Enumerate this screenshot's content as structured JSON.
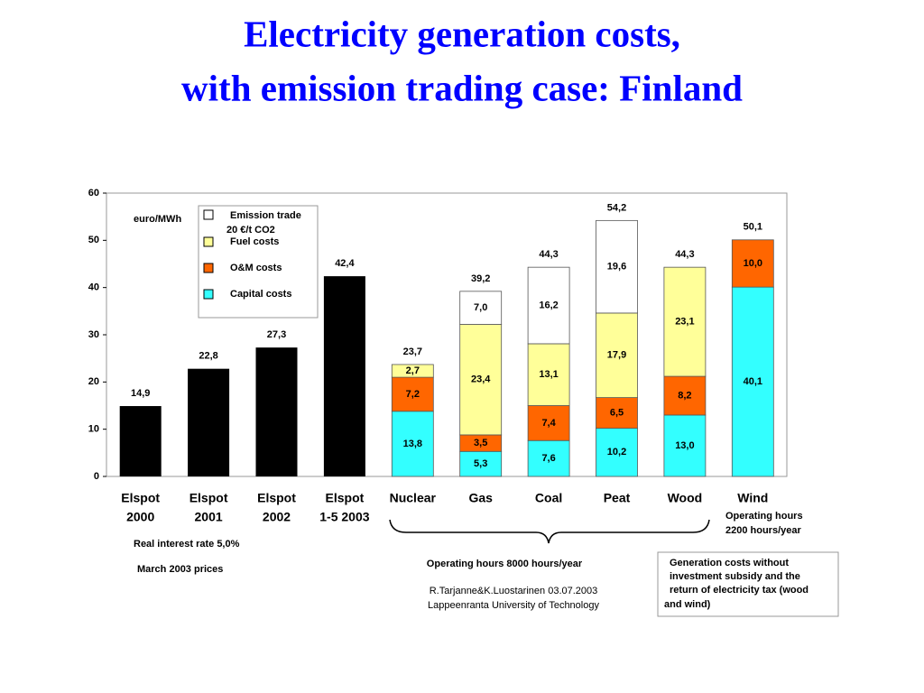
{
  "chart_data": {
    "type": "stacked_bar",
    "title": [
      "Electricity generation costs,",
      "with emission trading case: Finland"
    ],
    "y_label": "euro/MWh",
    "categories": [
      [
        "Elspot",
        "2000"
      ],
      [
        "Elspot",
        "2001"
      ],
      [
        "Elspot",
        "2002"
      ],
      [
        "Elspot",
        "1-5 2003"
      ],
      [
        "Nuclear"
      ],
      [
        "Gas"
      ],
      [
        "Coal"
      ],
      [
        "Peat"
      ],
      [
        "Wood"
      ],
      [
        "Wind"
      ]
    ],
    "series": [
      {
        "color": "#000000",
        "values": [
          14.9,
          22.8,
          27.3,
          42.4,
          null,
          null,
          null,
          null,
          null,
          null
        ],
        "value_labels": [
          "14,9",
          "22,8",
          "27,3",
          "42,4",
          null,
          null,
          null,
          null,
          null,
          null
        ]
      },
      {
        "name": [
          "Capital costs"
        ],
        "color": "#33ffff",
        "values": [
          null,
          null,
          null,
          null,
          13.8,
          5.3,
          7.6,
          10.2,
          13.0,
          40.1
        ],
        "value_labels": [
          null,
          null,
          null,
          null,
          "13,8",
          "5,3",
          "7,6",
          "10,2",
          "13,0",
          "40,1"
        ]
      },
      {
        "name": [
          "O&M costs"
        ],
        "color": "#ff6600",
        "values": [
          null,
          null,
          null,
          null,
          7.2,
          3.5,
          7.4,
          6.5,
          8.2,
          10.0
        ],
        "value_labels": [
          null,
          null,
          null,
          null,
          "7,2",
          "3,5",
          "7,4",
          "6,5",
          "8,2",
          "10,0"
        ]
      },
      {
        "name": [
          "Fuel costs"
        ],
        "color": "#ffff99",
        "values": [
          null,
          null,
          null,
          null,
          2.7,
          23.4,
          13.1,
          17.9,
          23.1,
          null
        ],
        "value_labels": [
          null,
          null,
          null,
          null,
          "2,7",
          "23,4",
          "13,1",
          "17,9",
          "23,1",
          null
        ]
      },
      {
        "name": [
          "Emission trade",
          "20 €/t CO2"
        ],
        "color": "#ffffff",
        "values": [
          null,
          null,
          null,
          null,
          null,
          7.0,
          16.2,
          19.6,
          null,
          null
        ],
        "value_labels": [
          null,
          null,
          null,
          null,
          null,
          "7,0",
          "16,2",
          "19,6",
          null,
          null
        ]
      }
    ],
    "totals": [
      null,
      null,
      null,
      null,
      23.7,
      39.2,
      44.3,
      54.2,
      44.3,
      50.1
    ],
    "total_labels": [
      null,
      null,
      null,
      null,
      "23,7",
      "39,2",
      "44,3",
      "54,2",
      "44,3",
      "50,1"
    ],
    "ylim": [
      0,
      60
    ],
    "yticks": [
      0,
      10,
      20,
      30,
      40,
      50,
      60
    ],
    "annotations": {
      "wind_hours": [
        "Operating hours",
        "2200 hours/year"
      ],
      "interest": "Real interest rate 5,0%",
      "prices": "March 2003 prices",
      "hours": "Operating hours 8000 hours/year",
      "source": [
        "R.Tarjanne&K.Luostarinen 03.07.2003",
        "Lappeenranta University of Technology"
      ],
      "note": [
        "Generation costs without",
        "investment subsidy and the",
        "return of electricity tax (wood",
        "and wind)"
      ]
    }
  }
}
